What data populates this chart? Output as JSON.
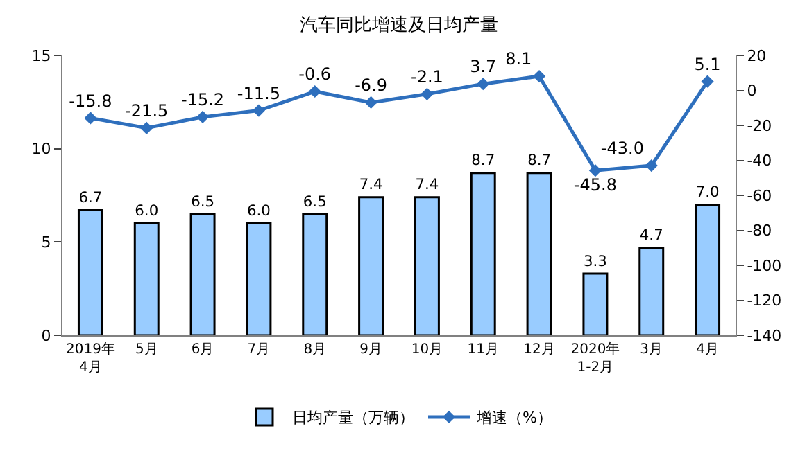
{
  "chart_data": {
    "type": "bar",
    "title": "汽车同比增速及日均产量",
    "categories": [
      "2019年\n4月",
      "5月",
      "6月",
      "7月",
      "8月",
      "9月",
      "10月",
      "11月",
      "12月",
      "2020年\n1-2月",
      "3月",
      "4月"
    ],
    "series": [
      {
        "name": "日均产量（万辆）",
        "color": "#99ccff",
        "values": [
          6.7,
          6.0,
          6.5,
          6.0,
          6.5,
          7.4,
          7.4,
          8.7,
          8.7,
          3.3,
          4.7,
          7.0
        ],
        "value_labels": [
          "6.7",
          "6.0",
          "6.5",
          "6.0",
          "6.5",
          "7.4",
          "7.4",
          "8.7",
          "8.7",
          "3.3",
          "4.7",
          "7.0"
        ]
      },
      {
        "name": "增速（%）",
        "type": "line",
        "axis": "y2",
        "color": "#2e6fbd",
        "marker": "diamond",
        "values": [
          -15.8,
          -21.5,
          -15.2,
          -11.5,
          -0.6,
          -6.9,
          -2.1,
          3.7,
          8.1,
          -45.8,
          -43.0,
          5.1
        ],
        "value_labels": [
          "-15.8",
          "-21.5",
          "-15.2",
          "-11.5",
          "-0.6",
          "-6.9",
          "-2.1",
          "3.7",
          "8.1",
          "-45.8",
          "-43.0",
          "5.1"
        ]
      }
    ],
    "ylim": [
      0,
      15
    ],
    "yticks": [
      0,
      5,
      10,
      15
    ],
    "y2lim": [
      -140,
      20
    ],
    "y2ticks": [
      -140,
      -120,
      -100,
      -80,
      -60,
      -40,
      -20,
      0,
      20
    ],
    "legend": "bottom"
  }
}
